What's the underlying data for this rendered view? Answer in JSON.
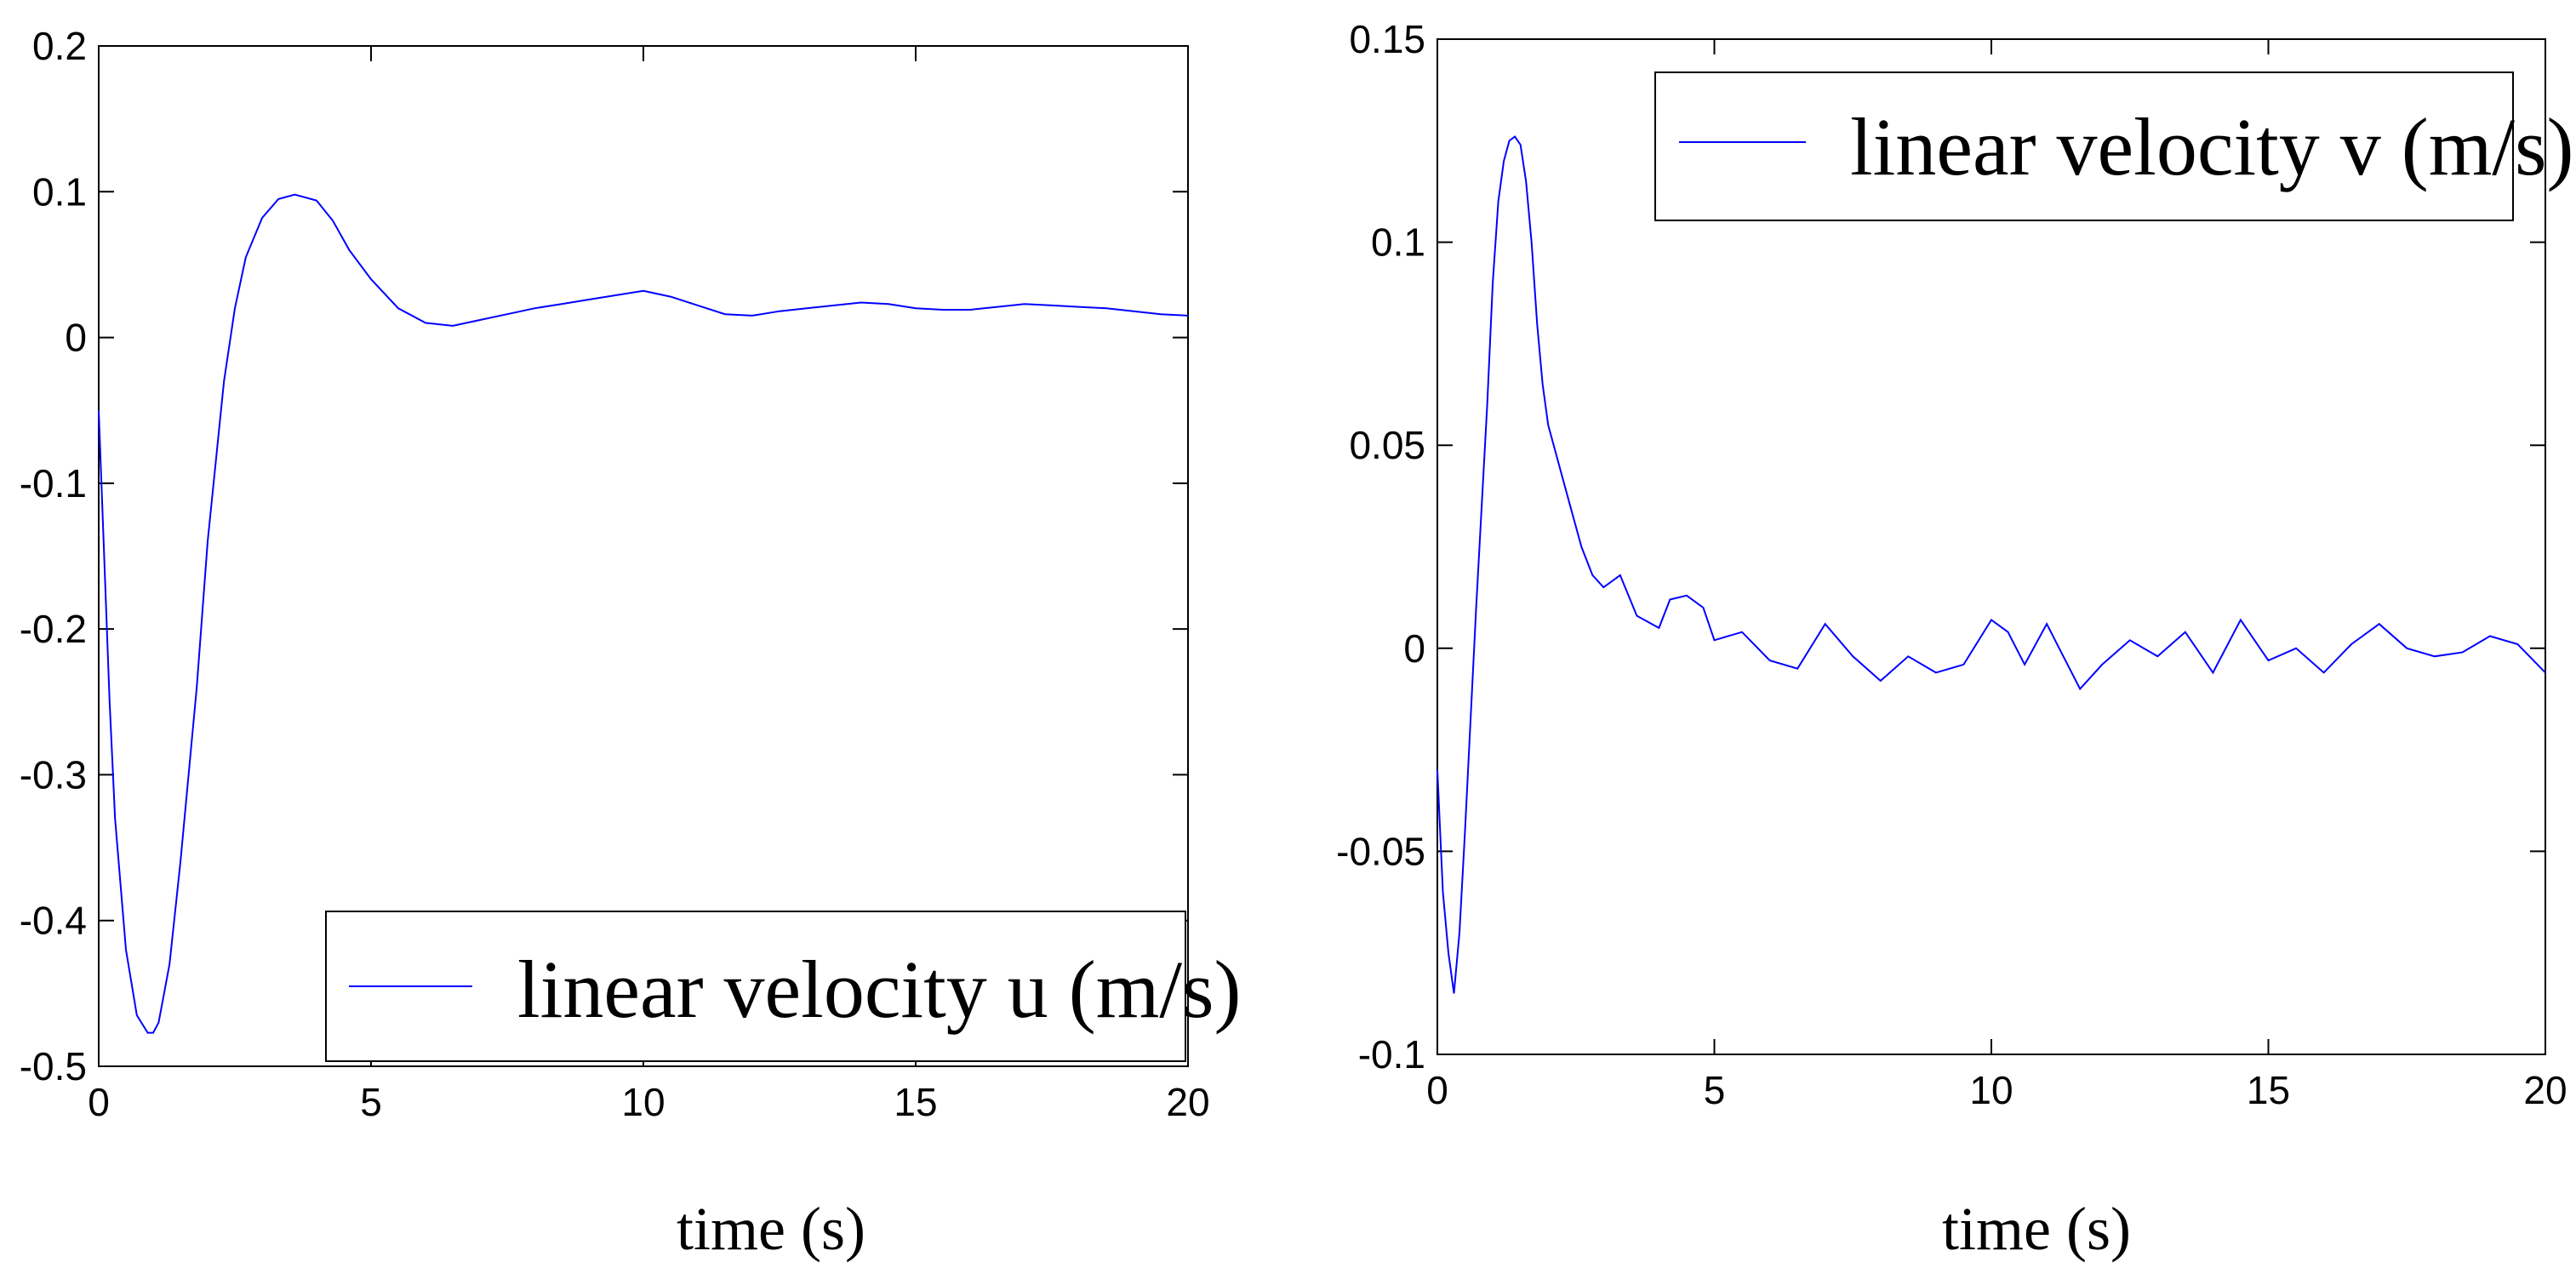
{
  "chart_data": [
    {
      "type": "line",
      "title": "",
      "xlabel": "time (s)",
      "ylabel": "",
      "xlim": [
        0,
        20
      ],
      "ylim": [
        -0.5,
        0.2
      ],
      "xticks": [
        0,
        5,
        10,
        15,
        20
      ],
      "xtick_labels": [
        "0",
        "5",
        "10",
        "15",
        "20"
      ],
      "yticks": [
        -0.5,
        -0.4,
        -0.3,
        -0.2,
        -0.1,
        0,
        0.1,
        0.2
      ],
      "ytick_labels": [
        "-0.5",
        "-0.4",
        "-0.3",
        "-0.2",
        "-0.1",
        "0",
        "0.1",
        "0.2"
      ],
      "grid": false,
      "legend_position": "bottom-right",
      "series": [
        {
          "name": "linear velocity u (m/s)",
          "color": "#0000ff",
          "x": [
            0,
            0.1,
            0.2,
            0.3,
            0.5,
            0.7,
            0.9,
            1.0,
            1.1,
            1.3,
            1.5,
            1.8,
            2.0,
            2.3,
            2.5,
            2.7,
            3.0,
            3.3,
            3.6,
            4.0,
            4.3,
            4.6,
            5.0,
            5.5,
            6.0,
            6.5,
            7.0,
            7.5,
            8.0,
            8.5,
            9.0,
            9.5,
            10.0,
            10.5,
            11.0,
            11.5,
            12.0,
            12.5,
            13.0,
            13.5,
            14.0,
            14.5,
            15.0,
            15.5,
            16.0,
            16.5,
            17.0,
            17.5,
            18.0,
            18.5,
            19.0,
            19.5,
            20.0
          ],
          "values": [
            -0.05,
            -0.15,
            -0.25,
            -0.33,
            -0.42,
            -0.465,
            -0.477,
            -0.477,
            -0.47,
            -0.43,
            -0.36,
            -0.24,
            -0.14,
            -0.03,
            0.02,
            0.055,
            0.082,
            0.095,
            0.098,
            0.094,
            0.08,
            0.06,
            0.04,
            0.02,
            0.01,
            0.008,
            0.012,
            0.016,
            0.02,
            0.023,
            0.026,
            0.029,
            0.032,
            0.028,
            0.022,
            0.016,
            0.015,
            0.018,
            0.02,
            0.022,
            0.024,
            0.023,
            0.02,
            0.019,
            0.019,
            0.021,
            0.023,
            0.022,
            0.021,
            0.02,
            0.018,
            0.016,
            0.015
          ]
        }
      ]
    },
    {
      "type": "line",
      "title": "",
      "xlabel": "time (s)",
      "ylabel": "",
      "xlim": [
        0,
        20
      ],
      "ylim": [
        -0.1,
        0.15
      ],
      "xticks": [
        0,
        5,
        10,
        15,
        20
      ],
      "xtick_labels": [
        "0",
        "5",
        "10",
        "15",
        "20"
      ],
      "yticks": [
        -0.1,
        -0.05,
        0,
        0.05,
        0.1,
        0.15
      ],
      "ytick_labels": [
        "-0.1",
        "-0.05",
        "0",
        "0.05",
        "0.1",
        "0.15"
      ],
      "grid": false,
      "legend_position": "top-right",
      "series": [
        {
          "name": "linear velocity v (m/s)",
          "color": "#0000ff",
          "x": [
            0,
            0.1,
            0.2,
            0.3,
            0.4,
            0.5,
            0.7,
            0.9,
            1.0,
            1.1,
            1.2,
            1.3,
            1.4,
            1.5,
            1.6,
            1.7,
            1.8,
            1.9,
            2.0,
            2.2,
            2.4,
            2.6,
            2.8,
            3.0,
            3.3,
            3.6,
            4.0,
            4.2,
            4.5,
            4.8,
            5.0,
            5.5,
            6.0,
            6.5,
            7.0,
            7.5,
            8.0,
            8.5,
            9.0,
            9.5,
            10.0,
            10.3,
            10.6,
            11.0,
            11.3,
            11.6,
            12.0,
            12.5,
            13.0,
            13.5,
            14.0,
            14.5,
            15.0,
            15.5,
            16.0,
            16.5,
            17.0,
            17.5,
            18.0,
            18.5,
            19.0,
            19.5,
            20.0
          ],
          "values": [
            -0.03,
            -0.06,
            -0.075,
            -0.085,
            -0.07,
            -0.045,
            0.01,
            0.06,
            0.09,
            0.11,
            0.12,
            0.125,
            0.126,
            0.124,
            0.115,
            0.1,
            0.08,
            0.065,
            0.055,
            0.045,
            0.035,
            0.025,
            0.018,
            0.015,
            0.018,
            0.008,
            0.005,
            0.012,
            0.013,
            0.01,
            0.002,
            0.004,
            -0.003,
            -0.005,
            0.006,
            -0.002,
            -0.008,
            -0.002,
            -0.006,
            -0.004,
            0.007,
            0.004,
            -0.004,
            0.006,
            -0.002,
            -0.01,
            -0.004,
            0.002,
            -0.002,
            0.004,
            -0.006,
            0.007,
            -0.003,
            0.0,
            -0.006,
            0.001,
            0.006,
            0.0,
            -0.002,
            -0.001,
            0.003,
            0.001,
            -0.006
          ]
        }
      ]
    }
  ]
}
